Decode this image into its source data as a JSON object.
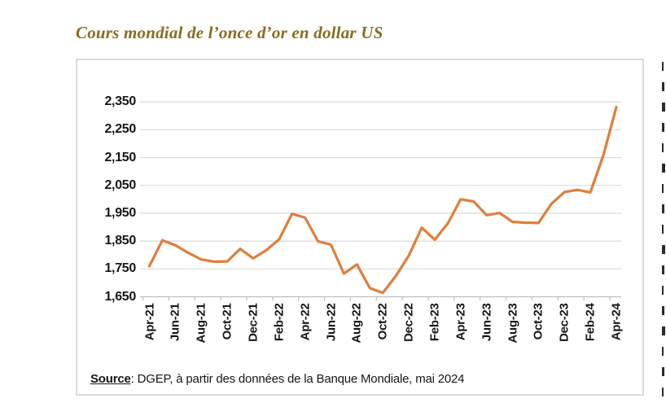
{
  "page": {
    "title": "Cours mondial de l’once d’or en dollar US"
  },
  "source": {
    "label": "Source",
    "rest": ": DGEP, à partir des données de la Banque Mondiale, mai 2024"
  },
  "colors": {
    "title_text": "#8a6c1e",
    "line": "#e07e3c",
    "grid": "#d9d9d9",
    "axis": "#bfbfbf",
    "label_text": "#161616",
    "panel_border": "#dadada"
  },
  "chart_data": {
    "type": "line",
    "title": "Cours mondial de l’once d’or en dollar US",
    "xlabel": "",
    "ylabel": "",
    "x": [
      "Apr-21",
      "May-21",
      "Jun-21",
      "Jul-21",
      "Aug-21",
      "Sep-21",
      "Oct-21",
      "Nov-21",
      "Dec-21",
      "Jan-22",
      "Feb-22",
      "Mar-22",
      "Apr-22",
      "May-22",
      "Jun-22",
      "Jul-22",
      "Aug-22",
      "Sep-22",
      "Oct-22",
      "Nov-22",
      "Dec-22",
      "Jan-23",
      "Feb-23",
      "Mar-23",
      "Apr-23",
      "May-23",
      "Jun-23",
      "Jul-23",
      "Aug-23",
      "Sep-23",
      "Oct-23",
      "Nov-23",
      "Dec-23",
      "Jan-24",
      "Feb-24",
      "Mar-24",
      "Apr-24"
    ],
    "values": [
      1760,
      1853,
      1835,
      1808,
      1784,
      1776,
      1777,
      1822,
      1788,
      1817,
      1856,
      1948,
      1934,
      1849,
      1837,
      1733,
      1766,
      1681,
      1664,
      1725,
      1798,
      1898,
      1855,
      1913,
      2000,
      1992,
      1943,
      1951,
      1919,
      1916,
      1915,
      1984,
      2026,
      2034,
      2025,
      2158,
      2331
    ],
    "x_tick_labels": [
      "Apr-21",
      "Jun-21",
      "Aug-21",
      "Oct-21",
      "Dec-21",
      "Feb-22",
      "Apr-22",
      "Jun-22",
      "Aug-22",
      "Oct-22",
      "Dec-22",
      "Feb-23",
      "Apr-23",
      "Jun-23",
      "Aug-23",
      "Oct-23",
      "Dec-23",
      "Feb-24",
      "Apr-24"
    ],
    "y_ticks": [
      1650,
      1750,
      1850,
      1950,
      2050,
      2150,
      2250,
      2350
    ],
    "ylim": [
      1650,
      2350
    ],
    "grid": "horizontal",
    "legend": "none",
    "line_color": "#e07e3c"
  }
}
